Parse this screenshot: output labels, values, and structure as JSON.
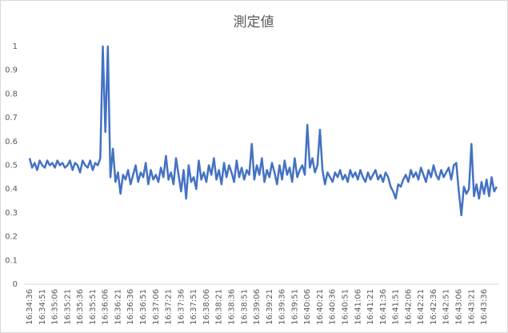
{
  "chart_data": {
    "type": "line",
    "title": "測定値",
    "categories": [
      "16:34:36",
      null,
      null,
      null,
      null,
      "16:34:51",
      null,
      null,
      null,
      null,
      "16:35:06",
      null,
      null,
      null,
      null,
      "16:35:21",
      null,
      null,
      null,
      null,
      "16:35:36",
      null,
      null,
      null,
      null,
      "16:35:51",
      null,
      null,
      null,
      null,
      "16:36:06",
      null,
      null,
      null,
      null,
      "16:36:21",
      null,
      null,
      null,
      null,
      "16:36:36",
      null,
      null,
      null,
      null,
      "16:36:51",
      null,
      null,
      null,
      null,
      "16:37:06",
      null,
      null,
      null,
      null,
      "16:37:21",
      null,
      null,
      null,
      null,
      "16:37:36",
      null,
      null,
      null,
      null,
      "16:37:51",
      null,
      null,
      null,
      null,
      "16:38:06",
      null,
      null,
      null,
      null,
      "16:38:21",
      null,
      null,
      null,
      null,
      "16:38:36",
      null,
      null,
      null,
      null,
      "16:38:51",
      null,
      null,
      null,
      null,
      "16:39:06",
      null,
      null,
      null,
      null,
      "16:39:21",
      null,
      null,
      null,
      null,
      "16:39:36",
      null,
      null,
      null,
      null,
      "16:39:51",
      null,
      null,
      null,
      null,
      "16:40:06",
      null,
      null,
      null,
      null,
      "16:40:21",
      null,
      null,
      null,
      null,
      "16:40:36",
      null,
      null,
      null,
      null,
      "16:40:51",
      null,
      null,
      null,
      null,
      "16:41:06",
      null,
      null,
      null,
      null,
      "16:41:21",
      null,
      null,
      null,
      null,
      "16:41:36",
      null,
      null,
      null,
      null,
      "16:41:51",
      null,
      null,
      null,
      null,
      "16:42:06",
      null,
      null,
      null,
      null,
      "16:42:21",
      null,
      null,
      null,
      null,
      "16:42:36",
      null,
      null,
      null,
      null,
      "16:42:51",
      null,
      null,
      null,
      null,
      "16:43:06",
      null,
      null,
      null,
      null,
      "16:43:21",
      null,
      null,
      null,
      null,
      "16:43:36",
      null,
      null,
      null,
      null,
      null
    ],
    "values": [
      0.53,
      0.49,
      0.51,
      0.48,
      0.52,
      0.5,
      0.49,
      0.52,
      0.5,
      0.51,
      0.49,
      0.52,
      0.5,
      0.51,
      0.49,
      0.5,
      0.52,
      0.48,
      0.51,
      0.5,
      0.47,
      0.52,
      0.5,
      0.49,
      0.52,
      0.48,
      0.51,
      0.5,
      0.53,
      1,
      0.64,
      1,
      0.45,
      0.57,
      0.43,
      0.47,
      0.38,
      0.46,
      0.44,
      0.48,
      0.42,
      0.46,
      0.5,
      0.43,
      0.47,
      0.45,
      0.51,
      0.42,
      0.48,
      0.44,
      0.46,
      0.43,
      0.49,
      0.45,
      0.54,
      0.44,
      0.47,
      0.42,
      0.53,
      0.46,
      0.39,
      0.48,
      0.36,
      0.5,
      0.43,
      0.45,
      0.4,
      0.52,
      0.44,
      0.47,
      0.43,
      0.5,
      0.46,
      0.53,
      0.44,
      0.48,
      0.42,
      0.51,
      0.45,
      0.5,
      0.47,
      0.43,
      0.52,
      0.45,
      0.49,
      0.44,
      0.48,
      0.46,
      0.59,
      0.44,
      0.5,
      0.46,
      0.53,
      0.43,
      0.48,
      0.45,
      0.51,
      0.47,
      0.42,
      0.5,
      0.44,
      0.52,
      0.46,
      0.49,
      0.43,
      0.53,
      0.45,
      0.48,
      0.5,
      0.46,
      0.67,
      0.49,
      0.53,
      0.47,
      0.5,
      0.65,
      0.48,
      0.42,
      0.47,
      0.45,
      0.43,
      0.47,
      0.45,
      0.48,
      0.44,
      0.46,
      0.43,
      0.48,
      0.45,
      0.47,
      0.44,
      0.48,
      0.45,
      0.43,
      0.47,
      0.44,
      0.46,
      0.48,
      0.44,
      0.46,
      0.43,
      0.47,
      0.45,
      0.41,
      0.39,
      0.36,
      0.42,
      0.41,
      0.44,
      0.46,
      0.43,
      0.48,
      0.45,
      0.47,
      0.44,
      0.49,
      0.46,
      0.43,
      0.48,
      0.45,
      0.5,
      0.46,
      0.44,
      0.48,
      0.45,
      0.47,
      0.49,
      0.44,
      0.5,
      0.51,
      0.39,
      0.29,
      0.41,
      0.38,
      0.4,
      0.59,
      0.37,
      0.42,
      0.36,
      0.43,
      0.38,
      0.44,
      0.37,
      0.45,
      0.39,
      0.41
    ],
    "color": "#4472c4",
    "ylim": [
      0,
      1
    ],
    "yticks": [
      0,
      0.1,
      0.2,
      0.3,
      0.4,
      0.5,
      0.6,
      0.7,
      0.8,
      0.9,
      1
    ],
    "grid": false
  }
}
